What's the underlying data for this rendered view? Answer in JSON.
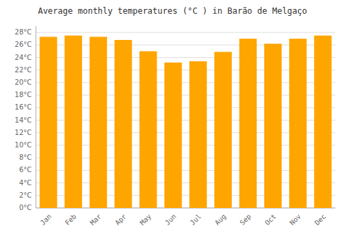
{
  "chart_data": {
    "type": "bar",
    "title": "Average monthly temperatures (°C ) in Barão de Melgaço",
    "categories": [
      "Jan",
      "Feb",
      "Mar",
      "Apr",
      "May",
      "Jun",
      "Jul",
      "Aug",
      "Sep",
      "Oct",
      "Nov",
      "Dec"
    ],
    "values": [
      27.3,
      27.5,
      27.3,
      26.8,
      25.0,
      23.2,
      23.4,
      24.9,
      27.0,
      26.2,
      27.0,
      27.5
    ],
    "color": "#FFA500",
    "ylim": [
      0,
      29
    ],
    "yticks": [
      {
        "value": 0,
        "label": "0°C"
      },
      {
        "value": 2,
        "label": "2°C"
      },
      {
        "value": 4,
        "label": "4°C"
      },
      {
        "value": 6,
        "label": "6°C"
      },
      {
        "value": 8,
        "label": "8°C"
      },
      {
        "value": 10,
        "label": "10°C"
      },
      {
        "value": 12,
        "label": "12°C"
      },
      {
        "value": 14,
        "label": "14°C"
      },
      {
        "value": 16,
        "label": "16°C"
      },
      {
        "value": 18,
        "label": "18°C"
      },
      {
        "value": 20,
        "label": "20°C"
      },
      {
        "value": 22,
        "label": "22°C"
      },
      {
        "value": 24,
        "label": "24°C"
      },
      {
        "value": 26,
        "label": "26°C"
      },
      {
        "value": 28,
        "label": "28°C"
      }
    ],
    "grid": true
  }
}
